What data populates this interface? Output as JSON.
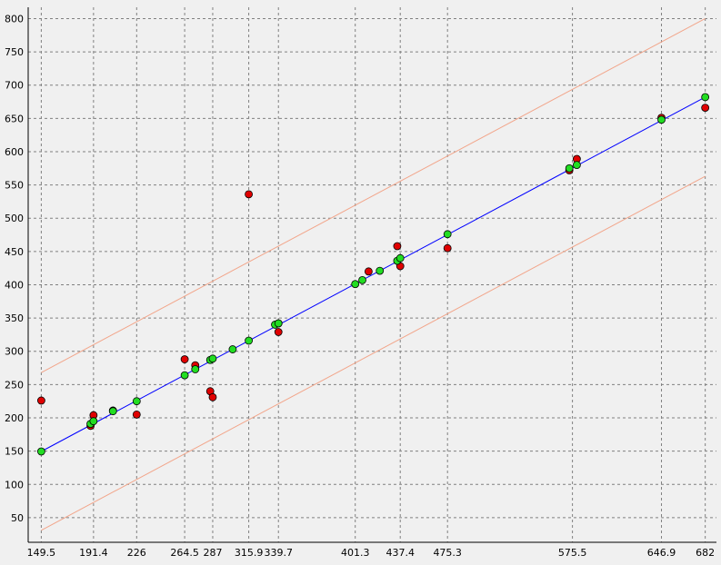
{
  "chart_data": {
    "type": "scatter",
    "title": "",
    "xlabel": "",
    "ylabel": "",
    "xlim": [
      139,
      691
    ],
    "ylim": [
      13,
      817
    ],
    "x_ticks": [
      149.5,
      191.4,
      226,
      264.5,
      287,
      315.9,
      339.7,
      401.3,
      437.4,
      475.3,
      575.5,
      646.9,
      682
    ],
    "x_tick_labels": [
      "149.5",
      "191.4",
      "226",
      "264.5",
      "287",
      "315.9",
      "339.7",
      "401.3",
      "437.4",
      "475.3",
      "575.5",
      "646.9",
      "682"
    ],
    "y_ticks": [
      50,
      100,
      150,
      200,
      250,
      300,
      350,
      400,
      450,
      500,
      550,
      600,
      650,
      700,
      750,
      800
    ],
    "y_tick_labels": [
      "50",
      "100",
      "150",
      "200",
      "250",
      "300",
      "350",
      "400",
      "450",
      "500",
      "550",
      "600",
      "650",
      "700",
      "750",
      "800"
    ],
    "grid": true,
    "colors": {
      "background": "#f0f0f0",
      "grid": "#808080",
      "fit_line": "#0000ff",
      "band_lines": "#f2a58a",
      "observed": "#e00000",
      "predicted": "#22dd22",
      "marker_edge": "#000000"
    },
    "fit_line": {
      "points": [
        [
          149.5,
          149.5
        ],
        [
          682,
          682
        ]
      ]
    },
    "band_upper": {
      "points": [
        [
          149.5,
          268
        ],
        [
          682,
          800
        ]
      ]
    },
    "band_lower": {
      "points": [
        [
          149.5,
          31
        ],
        [
          682,
          563
        ]
      ]
    },
    "series": [
      {
        "marker": "circle",
        "points": [
          [
            149.5,
            226
          ],
          [
            189,
            188
          ],
          [
            191.4,
            204
          ],
          [
            207,
            211
          ],
          [
            226,
            205
          ],
          [
            264.5,
            288
          ],
          [
            273,
            279
          ],
          [
            285,
            240
          ],
          [
            287,
            231
          ],
          [
            315.9,
            536
          ],
          [
            339.7,
            329
          ],
          [
            339.7,
            342
          ],
          [
            412,
            420
          ],
          [
            435,
            458
          ],
          [
            437.4,
            428
          ],
          [
            475.3,
            455
          ],
          [
            573,
            572
          ],
          [
            579,
            589
          ],
          [
            646.9,
            651
          ],
          [
            682,
            666
          ]
        ]
      },
      {
        "marker": "circle",
        "points": [
          [
            149.5,
            149.5
          ],
          [
            189,
            191
          ],
          [
            191.4,
            195
          ],
          [
            207,
            210
          ],
          [
            226,
            225
          ],
          [
            264.5,
            264
          ],
          [
            273,
            273
          ],
          [
            285,
            287
          ],
          [
            287,
            289
          ],
          [
            303,
            303
          ],
          [
            315.9,
            316
          ],
          [
            337,
            340
          ],
          [
            339.7,
            342
          ],
          [
            401.3,
            401
          ],
          [
            407,
            407
          ],
          [
            421,
            421
          ],
          [
            435,
            436
          ],
          [
            437.4,
            440
          ],
          [
            475.3,
            476
          ],
          [
            573,
            575
          ],
          [
            579,
            580
          ],
          [
            646.9,
            648
          ],
          [
            682,
            682
          ]
        ]
      }
    ]
  }
}
